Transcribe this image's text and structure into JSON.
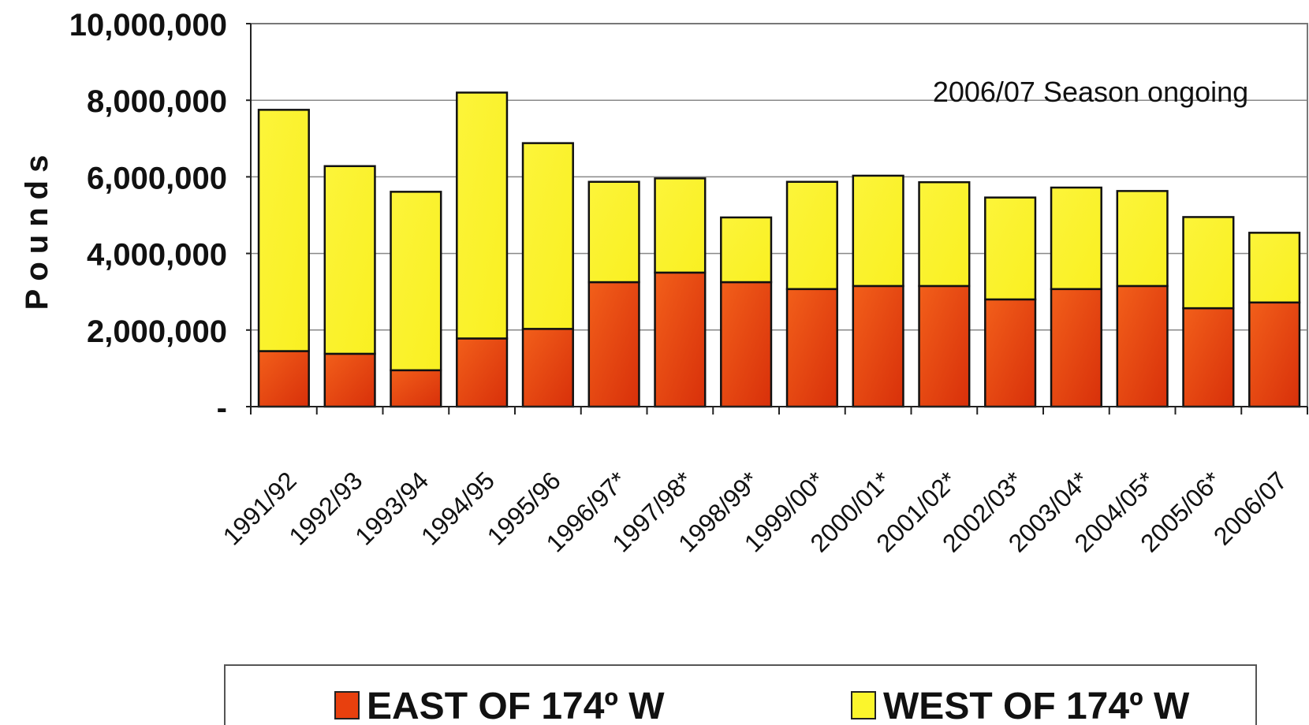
{
  "chart_data": {
    "type": "bar",
    "stacked": true,
    "ylabel": "Pounds",
    "ylim": [
      0,
      10000000
    ],
    "yticks": [
      {
        "value": 0,
        "label": "-"
      },
      {
        "value": 2000000,
        "label": "2,000,000"
      },
      {
        "value": 4000000,
        "label": "4,000,000"
      },
      {
        "value": 6000000,
        "label": "6,000,000"
      },
      {
        "value": 8000000,
        "label": "8,000,000"
      },
      {
        "value": 10000000,
        "label": "10,000,000"
      }
    ],
    "grid": true,
    "annotation": "2006/07 Season ongoing",
    "categories": [
      "1991/92",
      "1992/93",
      "1993/94",
      "1994/95",
      "1995/96",
      "1996/97*",
      "1997/98*",
      "1998/99*",
      "1999/00*",
      "2000/01*",
      "2001/02*",
      "2002/03*",
      "2003/04*",
      "2004/05*",
      "2005/06*",
      "2006/07"
    ],
    "series": [
      {
        "name": "EAST OF 174º W",
        "color": "#e8400e",
        "values": [
          1450000,
          1380000,
          950000,
          1780000,
          2030000,
          3250000,
          3500000,
          3250000,
          3070000,
          3150000,
          3150000,
          2800000,
          3070000,
          3150000,
          2570000,
          2720000
        ]
      },
      {
        "name": "WEST OF 174º W",
        "color": "#fbf52c",
        "values": [
          6300000,
          4900000,
          4660000,
          6420000,
          4850000,
          2620000,
          2460000,
          1690000,
          2800000,
          2880000,
          2710000,
          2660000,
          2650000,
          2480000,
          2380000,
          1820000
        ]
      }
    ],
    "legend_position": "bottom"
  }
}
